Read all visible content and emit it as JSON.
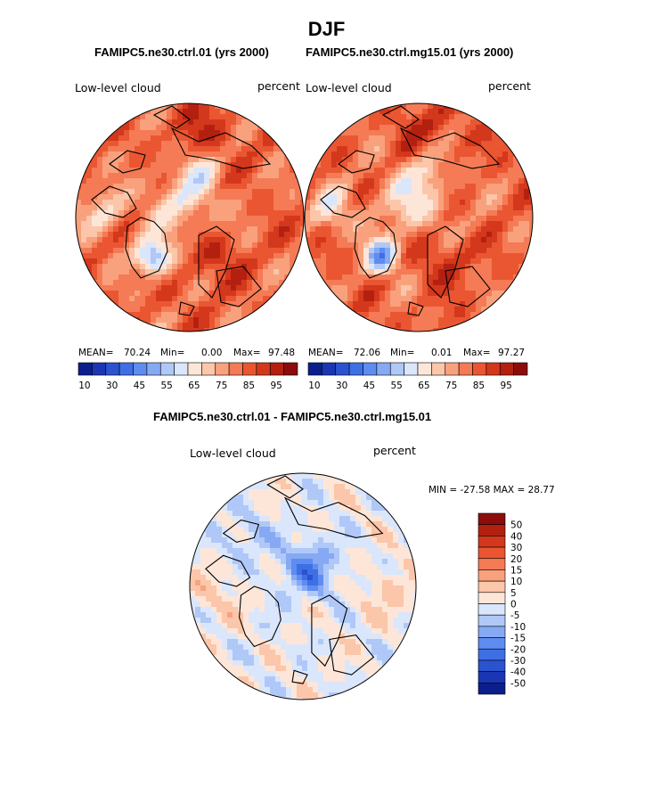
{
  "page": {
    "title": "DJF"
  },
  "panels": [
    {
      "title": "FAMIPC5.ne30.ctrl.01 (yrs 2000)",
      "variable": "Low-level cloud",
      "units": "percent",
      "stats": {
        "mean_label": "MEAN=",
        "mean": "70.24",
        "min_label": "Min=",
        "min": "0.00",
        "max_label": "Max=",
        "max": "97.48"
      }
    },
    {
      "title": "FAMIPC5.ne30.ctrl.mg15.01 (yrs 2000)",
      "variable": "Low-level cloud",
      "units": "percent",
      "stats": {
        "mean_label": "MEAN=",
        "mean": "72.06",
        "min_label": "Min=",
        "min": "0.01",
        "max_label": "Max=",
        "max": "97.27"
      }
    }
  ],
  "difference": {
    "title": "FAMIPC5.ne30.ctrl.01 - FAMIPC5.ne30.ctrl.mg15.01",
    "variable": "Low-level cloud",
    "units": "percent",
    "minmax": "MIN = -27.58 MAX =  28.77"
  },
  "chart_data": [
    {
      "type": "heatmap",
      "projection": "north polar stereographic",
      "title": "FAMIPC5.ne30.ctrl.01 (yrs 2000)",
      "field": "Low-level cloud",
      "units": "percent",
      "mean": 70.24,
      "min": 0.0,
      "max": 97.48,
      "colorbar_levels": [
        10,
        20,
        30,
        40,
        45,
        50,
        55,
        60,
        65,
        70,
        75,
        80,
        85,
        90,
        95
      ],
      "colorbar_tick_labels": [
        "10",
        "30",
        "45",
        "55",
        "65",
        "75",
        "85",
        "95"
      ],
      "colors": [
        "#0c1e8c",
        "#1b36b4",
        "#2b52cf",
        "#3f6fe4",
        "#5e8cf0",
        "#86a9f4",
        "#b0c8f7",
        "#dae6fb",
        "#fde6d8",
        "#fbc6aa",
        "#f9a17d",
        "#f47b55",
        "#ea5632",
        "#d3381c",
        "#b42010",
        "#8c0c0c"
      ],
      "legend_position": "bottom"
    },
    {
      "type": "heatmap",
      "projection": "north polar stereographic",
      "title": "FAMIPC5.ne30.ctrl.mg15.01 (yrs 2000)",
      "field": "Low-level cloud",
      "units": "percent",
      "mean": 72.06,
      "min": 0.01,
      "max": 97.27,
      "colorbar_levels": [
        10,
        20,
        30,
        40,
        45,
        50,
        55,
        60,
        65,
        70,
        75,
        80,
        85,
        90,
        95
      ],
      "colorbar_tick_labels": [
        "10",
        "30",
        "45",
        "55",
        "65",
        "75",
        "85",
        "95"
      ],
      "colors": [
        "#0c1e8c",
        "#1b36b4",
        "#2b52cf",
        "#3f6fe4",
        "#5e8cf0",
        "#86a9f4",
        "#b0c8f7",
        "#dae6fb",
        "#fde6d8",
        "#fbc6aa",
        "#f9a17d",
        "#f47b55",
        "#ea5632",
        "#d3381c",
        "#b42010",
        "#8c0c0c"
      ],
      "legend_position": "bottom"
    },
    {
      "type": "heatmap",
      "projection": "north polar stereographic",
      "title": "FAMIPC5.ne30.ctrl.01 - FAMIPC5.ne30.ctrl.mg15.01",
      "field": "Low-level cloud",
      "units": "percent",
      "min": -27.58,
      "max": 28.77,
      "colorbar_levels": [
        "-50",
        "-40",
        "-30",
        "-20",
        "-15",
        "-10",
        "-5",
        "0",
        "5",
        "10",
        "15",
        "20",
        "30",
        "40",
        "50"
      ],
      "colors": [
        "#8c0c0c",
        "#b42010",
        "#d3381c",
        "#ea5632",
        "#f47b55",
        "#f9a17d",
        "#fbc6aa",
        "#fde6d8",
        "#dae6fb",
        "#b0c8f7",
        "#86a9f4",
        "#5e8cf0",
        "#3f6fe4",
        "#2b52cf",
        "#1b36b4",
        "#0c1e8c"
      ],
      "legend_position": "right"
    }
  ]
}
